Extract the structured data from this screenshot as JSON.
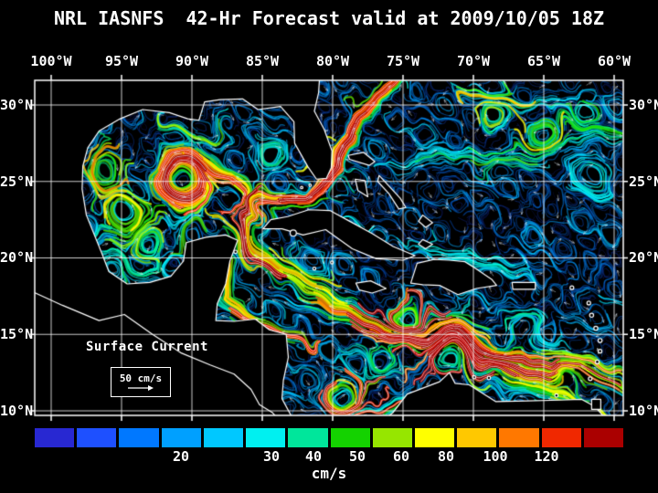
{
  "title": "NRL IASNFS  42-Hr Forecast valid at 2009/10/05 18Z",
  "map": {
    "lon_ticks": [
      "100°W",
      "95°W",
      "90°W",
      "85°W",
      "80°W",
      "75°W",
      "70°W",
      "65°W",
      "60°W"
    ],
    "lat_ticks": [
      "30°N",
      "25°N",
      "20°N",
      "15°N",
      "10°N"
    ],
    "annotation_label": "Surface Current",
    "scale_label": "50 cm/s"
  },
  "colorbar": {
    "unit": "cm/s",
    "segments": [
      "#2828d2",
      "#1e50ff",
      "#0078ff",
      "#00a0ff",
      "#00c8ff",
      "#00f0f0",
      "#00e69b",
      "#14d200",
      "#96e600",
      "#ffff00",
      "#ffc800",
      "#ff7800",
      "#f02800",
      "#aa0000"
    ],
    "ticks": [
      {
        "label": "20",
        "pos": 0.249
      },
      {
        "label": "30",
        "pos": 0.402
      },
      {
        "label": "40",
        "pos": 0.474
      },
      {
        "label": "50",
        "pos": 0.548
      },
      {
        "label": "60",
        "pos": 0.622
      },
      {
        "label": "80",
        "pos": 0.699
      },
      {
        "label": "100",
        "pos": 0.783
      },
      {
        "label": "120",
        "pos": 0.869
      }
    ]
  }
}
